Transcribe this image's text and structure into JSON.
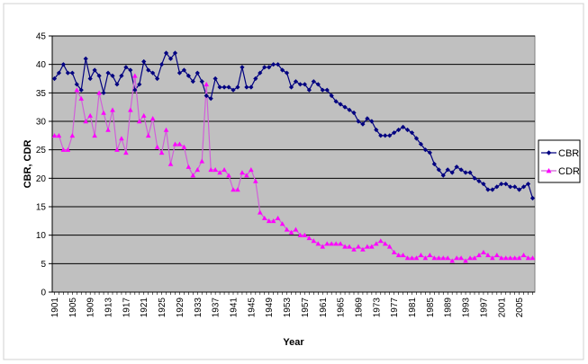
{
  "chart_data": {
    "type": "line",
    "title": "",
    "xlabel": "Year",
    "ylabel": "CBR, CDR",
    "xlim": [
      1901,
      2008
    ],
    "ylim": [
      0,
      45
    ],
    "y_ticks": [
      0,
      5,
      10,
      15,
      20,
      25,
      30,
      35,
      40,
      45
    ],
    "x_ticks": [
      1901,
      1905,
      1909,
      1913,
      1917,
      1921,
      1925,
      1929,
      1933,
      1937,
      1941,
      1945,
      1949,
      1953,
      1957,
      1961,
      1965,
      1969,
      1973,
      1977,
      1981,
      1985,
      1989,
      1993,
      1997,
      2001,
      2005
    ],
    "grid": "horizontal",
    "plot_background": "#c0c0c0",
    "legend_position": "right",
    "series": [
      {
        "name": "CBR",
        "color": "#000080",
        "marker": "diamond",
        "x": [
          1901,
          1902,
          1903,
          1904,
          1905,
          1906,
          1907,
          1908,
          1909,
          1910,
          1911,
          1912,
          1913,
          1914,
          1915,
          1916,
          1917,
          1918,
          1919,
          1920,
          1921,
          1922,
          1923,
          1924,
          1925,
          1926,
          1927,
          1928,
          1929,
          1930,
          1931,
          1932,
          1933,
          1934,
          1935,
          1936,
          1937,
          1938,
          1939,
          1940,
          1941,
          1942,
          1943,
          1944,
          1945,
          1946,
          1947,
          1948,
          1949,
          1950,
          1951,
          1952,
          1953,
          1954,
          1955,
          1956,
          1957,
          1958,
          1959,
          1960,
          1961,
          1962,
          1963,
          1964,
          1965,
          1966,
          1967,
          1968,
          1969,
          1970,
          1971,
          1972,
          1973,
          1974,
          1975,
          1976,
          1977,
          1978,
          1979,
          1980,
          1981,
          1982,
          1983,
          1984,
          1985,
          1986,
          1987,
          1988,
          1989,
          1990,
          1991,
          1992,
          1993,
          1994,
          1995,
          1996,
          1997,
          1998,
          1999,
          2000,
          2001,
          2002,
          2003,
          2004,
          2005,
          2006,
          2007,
          2008
        ],
        "values": [
          37.5,
          38.5,
          40,
          38.5,
          38.5,
          36.5,
          35.5,
          41,
          37.5,
          39,
          38,
          35,
          38.5,
          38,
          36.5,
          38,
          39.5,
          39,
          35.5,
          36.5,
          40.5,
          39,
          38.5,
          37.5,
          40,
          42,
          41,
          42,
          38.5,
          39,
          38,
          37,
          38.5,
          37,
          34.5,
          34,
          37.5,
          36,
          36,
          36,
          35.5,
          36,
          39.5,
          36,
          36,
          37.5,
          38.5,
          39.5,
          39.5,
          40,
          40,
          39,
          38.5,
          36,
          37,
          36.5,
          36.5,
          35.5,
          37,
          36.5,
          35.5,
          35.5,
          34.5,
          33.5,
          33,
          32.5,
          32,
          31.5,
          30,
          29.5,
          30.5,
          30,
          28.5,
          27.5,
          27.5,
          27.5,
          28,
          28.5,
          29,
          28.5,
          28,
          27,
          26,
          25,
          24.5,
          22.5,
          21.5,
          20.5,
          21.5,
          21,
          22,
          21.5,
          21,
          21,
          20,
          19.5,
          19,
          18,
          18,
          18.5,
          19,
          19,
          18.5,
          18.5,
          18,
          18.5,
          19,
          16.5
        ]
      },
      {
        "name": "CDR",
        "color": "#ff00ff",
        "line_color": "#d060d8",
        "marker": "triangle",
        "x": [
          1901,
          1902,
          1903,
          1904,
          1905,
          1906,
          1907,
          1908,
          1909,
          1910,
          1911,
          1912,
          1913,
          1914,
          1915,
          1916,
          1917,
          1918,
          1919,
          1920,
          1921,
          1922,
          1923,
          1924,
          1925,
          1926,
          1927,
          1928,
          1929,
          1930,
          1931,
          1932,
          1933,
          1934,
          1935,
          1936,
          1937,
          1938,
          1939,
          1940,
          1941,
          1942,
          1943,
          1944,
          1945,
          1946,
          1947,
          1948,
          1949,
          1950,
          1951,
          1952,
          1953,
          1954,
          1955,
          1956,
          1957,
          1958,
          1959,
          1960,
          1961,
          1962,
          1963,
          1964,
          1965,
          1966,
          1967,
          1968,
          1969,
          1970,
          1971,
          1972,
          1973,
          1974,
          1975,
          1976,
          1977,
          1978,
          1979,
          1980,
          1981,
          1982,
          1983,
          1984,
          1985,
          1986,
          1987,
          1988,
          1989,
          1990,
          1991,
          1992,
          1993,
          1994,
          1995,
          1996,
          1997,
          1998,
          1999,
          2000,
          2001,
          2002,
          2003,
          2004,
          2005,
          2006,
          2007,
          2008
        ],
        "values": [
          27.5,
          27.5,
          25,
          25,
          27.5,
          35.5,
          34,
          30,
          31,
          27.5,
          35,
          31.5,
          28.5,
          32,
          25,
          27,
          24.5,
          32,
          38,
          30,
          31,
          27.5,
          30.5,
          25.5,
          24.5,
          28.5,
          22.5,
          26,
          26,
          25.5,
          22,
          20.5,
          21.5,
          23,
          36.5,
          21.5,
          21.5,
          21,
          21.5,
          20.5,
          18,
          18,
          21,
          20.5,
          21.5,
          19.5,
          14,
          13,
          12.5,
          12.5,
          13,
          12,
          11,
          10.5,
          11,
          10,
          10,
          9.5,
          9,
          8.5,
          8,
          8.5,
          8.5,
          8.5,
          8.5,
          8,
          8,
          7.5,
          8,
          7.5,
          8,
          8,
          8.5,
          9,
          8.5,
          8,
          7,
          6.5,
          6.5,
          6,
          6,
          6,
          6.5,
          6,
          6.5,
          6,
          6,
          6,
          6,
          5.5,
          6,
          6,
          5.5,
          6,
          6,
          6.5,
          7,
          6.5,
          6,
          6.5,
          6,
          6,
          6,
          6,
          6,
          6.5,
          6,
          6
        ]
      }
    ]
  }
}
